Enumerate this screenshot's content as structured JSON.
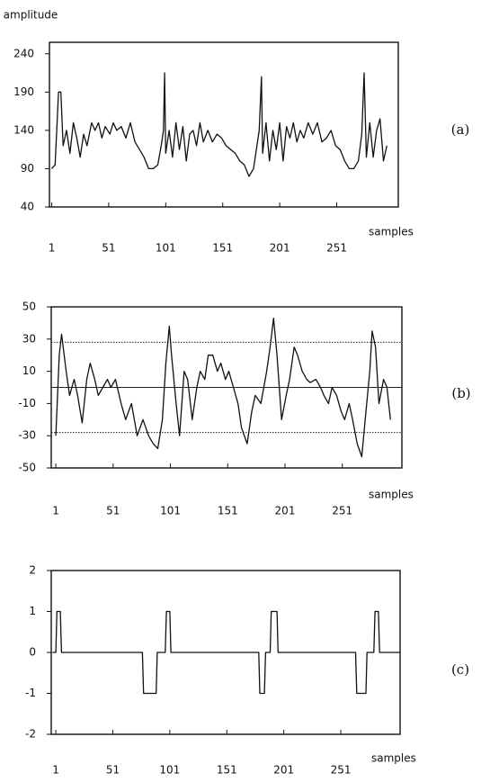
{
  "chart_data": [
    {
      "type": "line",
      "y_label": "amplitude",
      "x_label": "samples",
      "panel_label": "(a)",
      "color": "#111111",
      "x": [
        1,
        4,
        7,
        9,
        11,
        14,
        17,
        20,
        23,
        26,
        29,
        32,
        36,
        39,
        42,
        45,
        48,
        52,
        55,
        58,
        62,
        66,
        70,
        74,
        78,
        82,
        86,
        90,
        94,
        97,
        99,
        100,
        101,
        104,
        107,
        110,
        113,
        116,
        119,
        122,
        125,
        128,
        131,
        134,
        138,
        142,
        146,
        150,
        154,
        158,
        162,
        166,
        170,
        174,
        178,
        181,
        183,
        185,
        186,
        189,
        192,
        195,
        198,
        201,
        204,
        207,
        210,
        213,
        216,
        219,
        222,
        226,
        230,
        234,
        238,
        242,
        246,
        250,
        254,
        258,
        262,
        266,
        270,
        273,
        275,
        277,
        280,
        283,
        286,
        289,
        292,
        295
      ],
      "values": [
        90,
        95,
        190,
        190,
        120,
        140,
        110,
        150,
        130,
        105,
        135,
        120,
        150,
        140,
        150,
        130,
        145,
        135,
        150,
        140,
        145,
        130,
        150,
        125,
        115,
        105,
        90,
        90,
        95,
        120,
        140,
        215,
        110,
        140,
        105,
        150,
        115,
        145,
        100,
        135,
        140,
        120,
        150,
        125,
        140,
        125,
        135,
        130,
        120,
        115,
        110,
        100,
        95,
        80,
        90,
        120,
        140,
        210,
        110,
        150,
        100,
        140,
        115,
        150,
        100,
        145,
        130,
        150,
        125,
        140,
        130,
        150,
        135,
        150,
        125,
        130,
        140,
        120,
        115,
        100,
        90,
        90,
        100,
        135,
        215,
        105,
        150,
        105,
        140,
        155,
        100,
        120
      ],
      "xlim": [
        -1,
        305
      ],
      "ylim": [
        40,
        255
      ],
      "xticks": [
        1,
        51,
        101,
        151,
        201,
        251
      ],
      "yticks": [
        40,
        90,
        140,
        190,
        240
      ]
    },
    {
      "type": "line",
      "x_label": "samples",
      "panel_label": "(b)",
      "color": "#111111",
      "x": [
        1,
        4,
        6,
        10,
        13,
        17,
        20,
        24,
        28,
        31,
        35,
        38,
        42,
        46,
        49,
        53,
        58,
        62,
        67,
        72,
        77,
        82,
        86,
        90,
        94,
        97,
        100,
        102,
        106,
        109,
        113,
        116,
        120,
        124,
        127,
        131,
        134,
        138,
        142,
        145,
        149,
        152,
        156,
        160,
        163,
        168,
        172,
        175,
        180,
        185,
        188,
        191,
        194,
        198,
        202,
        205,
        209,
        212,
        216,
        220,
        223,
        228,
        232,
        235,
        239,
        242,
        246,
        250,
        253,
        257,
        260,
        264,
        268,
        271,
        275,
        277,
        280,
        283,
        287,
        290,
        293
      ],
      "values": [
        -30,
        20,
        33,
        10,
        -5,
        5,
        -5,
        -22,
        5,
        15,
        5,
        -5,
        0,
        5,
        0,
        5,
        -10,
        -20,
        -10,
        -30,
        -20,
        -30,
        -35,
        -38,
        -20,
        15,
        38,
        20,
        -10,
        -30,
        10,
        5,
        -20,
        0,
        10,
        5,
        20,
        20,
        10,
        15,
        5,
        10,
        0,
        -10,
        -25,
        -35,
        -15,
        -5,
        -10,
        10,
        25,
        43,
        20,
        -20,
        -5,
        5,
        25,
        20,
        10,
        5,
        3,
        5,
        0,
        -5,
        -10,
        0,
        -5,
        -15,
        -20,
        -10,
        -20,
        -35,
        -43,
        -20,
        10,
        35,
        25,
        -10,
        5,
        0,
        -20
      ],
      "hlines": [
        {
          "value": 28,
          "style": "dotted"
        },
        {
          "value": 0,
          "style": "solid"
        },
        {
          "value": -28,
          "style": "dotted"
        }
      ],
      "xlim": [
        -3,
        303
      ],
      "ylim": [
        -50,
        50
      ],
      "xticks": [
        1,
        51,
        101,
        151,
        201,
        251
      ],
      "yticks": [
        50,
        30,
        10,
        -10,
        -30,
        -50
      ]
    },
    {
      "type": "line",
      "x_label": "samples",
      "panel_label": "(c)",
      "color": "#111111",
      "x": [
        -2,
        1,
        2,
        5,
        6,
        77,
        78,
        89,
        90,
        97,
        98,
        101,
        102,
        179,
        180,
        184,
        185,
        189,
        190,
        195,
        196,
        264,
        265,
        273,
        274,
        280,
        281,
        284,
        285,
        303
      ],
      "values": [
        0,
        0,
        1,
        1,
        0,
        0,
        -1,
        -1,
        0,
        0,
        1,
        1,
        0,
        0,
        -1,
        -1,
        0,
        0,
        1,
        1,
        0,
        0,
        -1,
        -1,
        0,
        0,
        1,
        1,
        0,
        0
      ],
      "xlim": [
        -3,
        303
      ],
      "ylim": [
        -2,
        2
      ],
      "xticks": [
        1,
        51,
        101,
        151,
        201,
        251
      ],
      "yticks": [
        2,
        1,
        0,
        -1,
        -2
      ]
    }
  ]
}
